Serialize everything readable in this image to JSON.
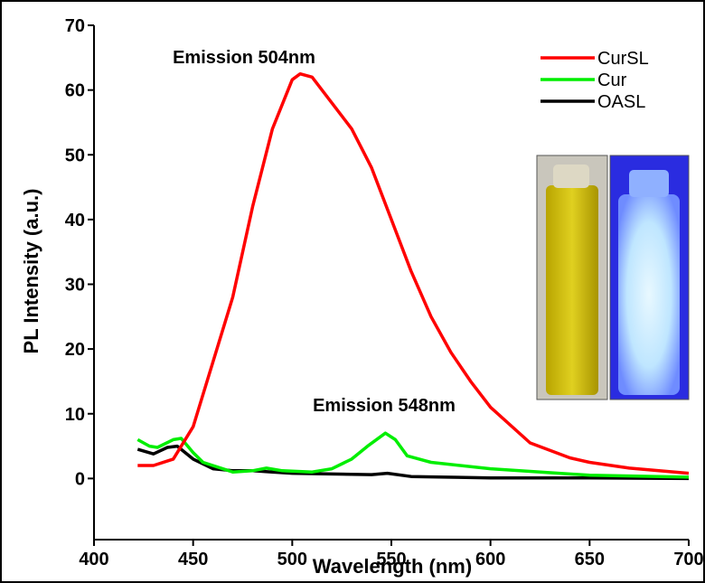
{
  "chart_data": {
    "type": "line",
    "xlabel": "Wavelength (nm)",
    "ylabel": "PL Intensity (a.u.)",
    "annotations": [
      "Emission 504nm",
      "Emission 548nm"
    ],
    "xlim": [
      400,
      700
    ],
    "ylim": [
      -10,
      70
    ],
    "xticks": [
      400,
      450,
      500,
      550,
      600,
      650,
      700
    ],
    "yticks": [
      0,
      10,
      20,
      30,
      40,
      50,
      60,
      70
    ],
    "legend": "upper right",
    "series": [
      {
        "name": "CurSL",
        "color": "#ff0000",
        "x": [
          422,
          430,
          440,
          450,
          460,
          470,
          480,
          490,
          500,
          504,
          510,
          520,
          530,
          540,
          550,
          560,
          570,
          580,
          590,
          600,
          620,
          640,
          650,
          670,
          700
        ],
        "values": [
          2,
          2,
          3,
          8,
          18,
          28,
          42,
          54,
          61.6,
          62.5,
          62,
          58,
          54,
          48,
          40,
          32,
          25,
          19.5,
          15,
          11,
          5.5,
          3.2,
          2.5,
          1.6,
          0.8
        ]
      },
      {
        "name": "Cur",
        "color": "#00ee00",
        "x": [
          422,
          428,
          432,
          440,
          444,
          450,
          455,
          470,
          480,
          487,
          495,
          510,
          520,
          530,
          538,
          547,
          552,
          558,
          570,
          600,
          650,
          700
        ],
        "values": [
          6,
          5,
          4.8,
          6,
          6.2,
          4,
          2.5,
          1,
          1.2,
          1.6,
          1.2,
          1,
          1.5,
          3,
          5,
          7,
          6,
          3.5,
          2.5,
          1.5,
          0.5,
          0.2
        ]
      },
      {
        "name": "OASL",
        "color": "#000000",
        "x": [
          422,
          430,
          437,
          442,
          450,
          460,
          470,
          480,
          490,
          500,
          520,
          540,
          548,
          560,
          600,
          650,
          700
        ],
        "values": [
          4.5,
          3.8,
          4.8,
          5,
          3,
          1.5,
          1.2,
          1.2,
          1,
          0.8,
          0.7,
          0.6,
          0.8,
          0.3,
          0.1,
          0.1,
          0
        ]
      }
    ]
  }
}
